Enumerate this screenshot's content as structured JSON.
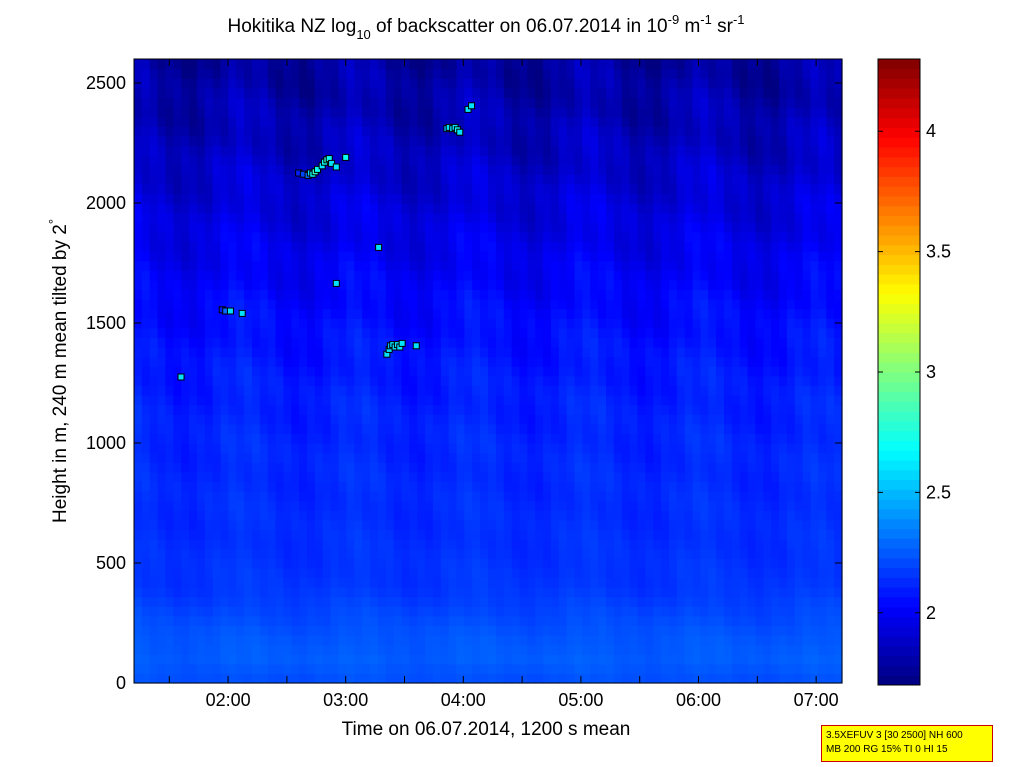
{
  "chart_data": {
    "type": "heatmap",
    "title_parts": {
      "t1": "Hokitika NZ log",
      "sub": "10",
      "t2": " of backscatter on 06.07.2014 in 10",
      "sup1": "-9",
      "t3": " m",
      "sup2": "-1",
      "t4": " sr",
      "sup3": "-1"
    },
    "xlabel": "Time on 06.07.2014, 1200 s mean",
    "ylabel_text": "Height in m, 240 m mean tilted by 2",
    "ylabel_degree": "°",
    "xlim": [
      1.2,
      7.22
    ],
    "ylim": [
      0,
      2600
    ],
    "xticks": [
      {
        "value": 2,
        "label": "02:00"
      },
      {
        "value": 3,
        "label": "03:00"
      },
      {
        "value": 4,
        "label": "04:00"
      },
      {
        "value": 5,
        "label": "05:00"
      },
      {
        "value": 6,
        "label": "06:00"
      },
      {
        "value": 7,
        "label": "07:00"
      }
    ],
    "yticks": [
      {
        "value": 0,
        "label": "0"
      },
      {
        "value": 500,
        "label": "500"
      },
      {
        "value": 1000,
        "label": "1000"
      },
      {
        "value": 1500,
        "label": "1500"
      },
      {
        "value": 2000,
        "label": "2000"
      },
      {
        "value": 2500,
        "label": "2500"
      }
    ],
    "colorbar": {
      "clim": [
        1.7,
        4.3
      ],
      "ticks": [
        {
          "value": 2,
          "label": "2"
        },
        {
          "value": 2.5,
          "label": "2.5"
        },
        {
          "value": 3,
          "label": "3"
        },
        {
          "value": 3.5,
          "label": "3.5"
        },
        {
          "value": 4,
          "label": "4"
        }
      ],
      "colormap": "jet"
    },
    "field_profile": {
      "heights": [
        0,
        100,
        200,
        400,
        600,
        800,
        1000,
        1200,
        1400,
        1600,
        1800,
        2000,
        2200,
        2400,
        2600
      ],
      "log_backscatter": [
        2.22,
        2.26,
        2.24,
        2.16,
        2.14,
        2.13,
        2.12,
        2.1,
        2.07,
        2.03,
        1.98,
        1.93,
        1.87,
        1.82,
        1.78
      ]
    },
    "cloud_base_points": [
      {
        "x": 1.6,
        "y": 1275,
        "v": 2.6
      },
      {
        "x": 1.95,
        "y": 1555,
        "v": 2.1
      },
      {
        "x": 1.98,
        "y": 1550,
        "v": 2.3
      },
      {
        "x": 2.02,
        "y": 1550,
        "v": 2.6
      },
      {
        "x": 2.12,
        "y": 1540,
        "v": 2.6
      },
      {
        "x": 2.6,
        "y": 2125,
        "v": 2.1
      },
      {
        "x": 2.64,
        "y": 2120,
        "v": 2.2
      },
      {
        "x": 2.68,
        "y": 2115,
        "v": 2.3
      },
      {
        "x": 2.7,
        "y": 2125,
        "v": 2.6
      },
      {
        "x": 2.72,
        "y": 2120,
        "v": 2.7
      },
      {
        "x": 2.74,
        "y": 2130,
        "v": 2.8
      },
      {
        "x": 2.76,
        "y": 2140,
        "v": 2.7
      },
      {
        "x": 2.8,
        "y": 2155,
        "v": 2.6
      },
      {
        "x": 2.82,
        "y": 2170,
        "v": 2.7
      },
      {
        "x": 2.84,
        "y": 2180,
        "v": 2.8
      },
      {
        "x": 2.86,
        "y": 2185,
        "v": 2.7
      },
      {
        "x": 2.88,
        "y": 2165,
        "v": 2.6
      },
      {
        "x": 2.92,
        "y": 2150,
        "v": 2.6
      },
      {
        "x": 3.0,
        "y": 2190,
        "v": 2.7
      },
      {
        "x": 2.92,
        "y": 1665,
        "v": 2.6
      },
      {
        "x": 3.28,
        "y": 1815,
        "v": 2.6
      },
      {
        "x": 3.35,
        "y": 1370,
        "v": 2.6
      },
      {
        "x": 3.37,
        "y": 1390,
        "v": 2.6
      },
      {
        "x": 3.38,
        "y": 1405,
        "v": 2.5
      },
      {
        "x": 3.4,
        "y": 1410,
        "v": 2.6
      },
      {
        "x": 3.42,
        "y": 1400,
        "v": 2.6
      },
      {
        "x": 3.44,
        "y": 1410,
        "v": 2.6
      },
      {
        "x": 3.46,
        "y": 1400,
        "v": 2.6
      },
      {
        "x": 3.48,
        "y": 1415,
        "v": 2.6
      },
      {
        "x": 3.6,
        "y": 1405,
        "v": 2.6
      },
      {
        "x": 3.86,
        "y": 2310,
        "v": 2.5
      },
      {
        "x": 3.88,
        "y": 2315,
        "v": 2.6
      },
      {
        "x": 3.91,
        "y": 2310,
        "v": 2.6
      },
      {
        "x": 3.93,
        "y": 2315,
        "v": 2.6
      },
      {
        "x": 3.95,
        "y": 2305,
        "v": 2.7
      },
      {
        "x": 3.97,
        "y": 2295,
        "v": 2.6
      },
      {
        "x": 4.04,
        "y": 2390,
        "v": 2.6
      },
      {
        "x": 4.07,
        "y": 2405,
        "v": 2.6
      }
    ]
  },
  "annotation": {
    "line1": "3.5XEFUV 3 [30 2500] NH 600",
    "line2": "MB 200 RG 15% TI 0 HI 15"
  }
}
